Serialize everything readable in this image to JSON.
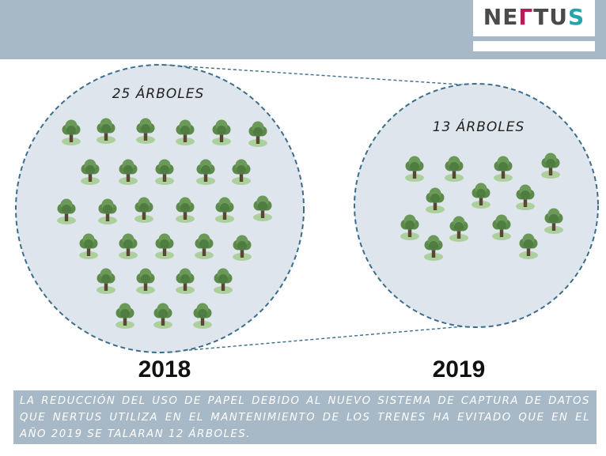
{
  "logo": {
    "part1": "NE",
    "part2": "Г",
    "part3": "TU",
    "part4": "S",
    "colors": {
      "dark": "#4a4a4a",
      "magenta": "#b51c59",
      "teal": "#29a3ab"
    }
  },
  "left_circle": {
    "label": "25 ÁRBOLES",
    "year": "2018",
    "tree_count": 25
  },
  "right_circle": {
    "label": "13 ÁRBOLES",
    "year": "2019",
    "tree_count": 13
  },
  "caption": "LA REDUCCIÓN DEL USO DE PAPEL DEBIDO AL NUEVO SISTEMA DE CAPTURA DE DATOS QUE NERTUS UTILIZA EN EL MANTENIMIENTO DE LOS TRENES HA EVITADO QUE EN EL AÑO 2019 SE TALARAN 12 ÁRBOLES.",
  "colors": {
    "header": "#a7b8c7",
    "circle_fill": "#dfe5ed",
    "circle_stroke": "#3b6e8c",
    "tree_canopy": "#5b8a4a",
    "tree_trunk": "#5a4634",
    "grass": "#9fca86"
  }
}
